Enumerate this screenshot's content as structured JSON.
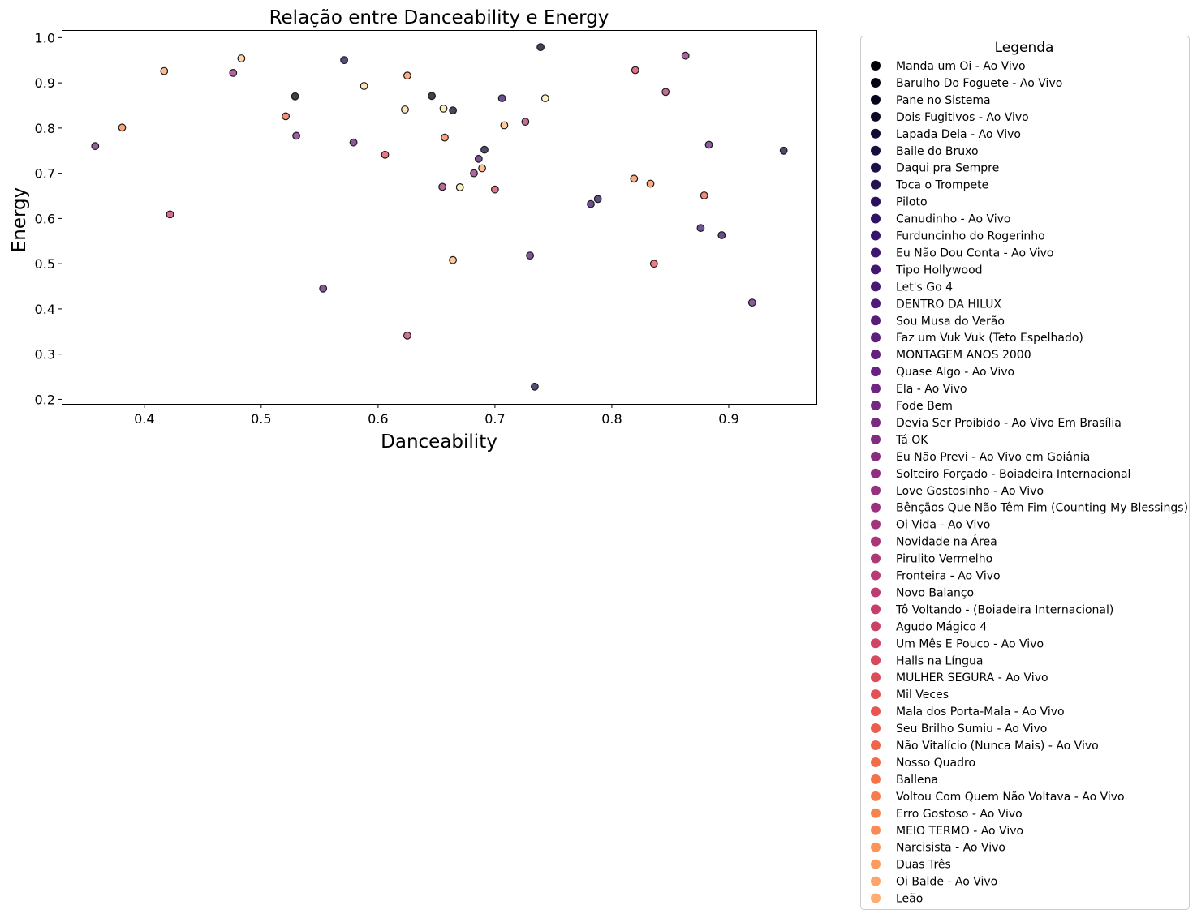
{
  "chart_data": {
    "type": "scatter",
    "title": "Relação entre Danceability e Energy",
    "xlabel": "Danceability",
    "ylabel": "Energy",
    "xlim": [
      0.33,
      0.975
    ],
    "ylim": [
      0.19,
      1.015
    ],
    "xticks": [
      0.4,
      0.5,
      0.6,
      0.7,
      0.8,
      0.9
    ],
    "xtick_labels": [
      "0.4",
      "0.5",
      "0.6",
      "0.7",
      "0.8",
      "0.9"
    ],
    "yticks": [
      0.2,
      0.3,
      0.4,
      0.5,
      0.6,
      0.7,
      0.8,
      0.9,
      1.0
    ],
    "ytick_labels": [
      "0.2",
      "0.3",
      "0.4",
      "0.5",
      "0.6",
      "0.7",
      "0.8",
      "0.9",
      "1.0"
    ],
    "grid": false,
    "legend_title": "Legenda",
    "legend_position": "outside-right",
    "series": [
      {
        "name": "Manda um Oi - Ao Vivo",
        "color": "#000004"
      },
      {
        "name": "Barulho Do Foguete - Ao Vivo",
        "color": "#030213"
      },
      {
        "name": "Pane no Sistema",
        "color": "#06051f"
      },
      {
        "name": "Dois Fugitivos - Ao Vivo",
        "color": "#0b0926"
      },
      {
        "name": "Lapada Dela - Ao Vivo",
        "color": "#110c33"
      },
      {
        "name": "Baile do Bruxo",
        "color": "#180f3d"
      },
      {
        "name": "Daqui pra Sempre",
        "color": "#1d1147"
      },
      {
        "name": "Toca o Trompete",
        "color": "#231151"
      },
      {
        "name": "Piloto",
        "color": "#2a115c"
      },
      {
        "name": "Canudinho - Ao Vivo",
        "color": "#311165"
      },
      {
        "name": "Furduncinho do Rogerinho",
        "color": "#37126b"
      },
      {
        "name": "Eu Não Dou Conta - Ao Vivo",
        "color": "#3d1470"
      },
      {
        "name": "Tipo Hollywood",
        "color": "#441674"
      },
      {
        "name": "Let's Go 4",
        "color": "#4a1877"
      },
      {
        "name": "DENTRO DA HILUX",
        "color": "#501a7a"
      },
      {
        "name": "Sou Musa do Verão",
        "color": "#571c7c"
      },
      {
        "name": "Faz um Vuk Vuk (Teto Espelhado)",
        "color": "#5d1e7e"
      },
      {
        "name": "MONTAGEM ANOS 2000",
        "color": "#63207f"
      },
      {
        "name": "Quase Algo - Ao Vivo",
        "color": "#692280"
      },
      {
        "name": "Ela - Ao Vivo",
        "color": "#702580"
      },
      {
        "name": "Fode Bem",
        "color": "#762781"
      },
      {
        "name": "Devia Ser Proibido - Ao Vivo Em Brasília",
        "color": "#7c2981"
      },
      {
        "name": "Tá OK",
        "color": "#822b81"
      },
      {
        "name": "Eu Não Previ - Ao Vivo em Goiânia",
        "color": "#892d80"
      },
      {
        "name": "Solteiro Forçado - Boiadeira Internacional",
        "color": "#902f80"
      },
      {
        "name": "Love Gostosinho - Ao Vivo",
        "color": "#96317f"
      },
      {
        "name": "Bênçãos Que Não Têm Fim (Counting My Blessings)",
        "color": "#9c327e"
      },
      {
        "name": "Oi Vida - Ao Vivo",
        "color": "#a2347c"
      },
      {
        "name": "Novidade na Área",
        "color": "#a9367a"
      },
      {
        "name": "Pirulito Vermelho",
        "color": "#b03877"
      },
      {
        "name": "Fronteira - Ao Vivo",
        "color": "#b73a74"
      },
      {
        "name": "Novo Balanço",
        "color": "#be3c70"
      },
      {
        "name": "Tô Voltando - (Boiadeira Internacional)",
        "color": "#c53f6c"
      },
      {
        "name": "Agudo Mágico 4",
        "color": "#cb4268"
      },
      {
        "name": "Um Mês E Pouco - Ao Vivo",
        "color": "#d24463"
      },
      {
        "name": "Halls na Língua",
        "color": "#d8485e"
      },
      {
        "name": "MULHER SEGURA - Ao Vivo",
        "color": "#de4c59"
      },
      {
        "name": "Mil Veces",
        "color": "#e35154"
      },
      {
        "name": "Mala dos Porta-Mala - Ao Vivo",
        "color": "#e8574f"
      },
      {
        "name": "Seu Brilho Sumiu - Ao Vivo",
        "color": "#ec5d4b"
      },
      {
        "name": "Não Vitalício (Nunca Mais) - Ao Vivo",
        "color": "#f06449"
      },
      {
        "name": "Nosso Quadro",
        "color": "#f36b48"
      },
      {
        "name": "Ballena",
        "color": "#f57349"
      },
      {
        "name": "Voltou Com Quem Não Voltava - Ao Vivo",
        "color": "#f87b4c"
      },
      {
        "name": "Erro Gostoso - Ao Vivo",
        "color": "#f9834f"
      },
      {
        "name": "MEIO TERMO - Ao Vivo",
        "color": "#fb8b54"
      },
      {
        "name": "Narcisista - Ao Vivo",
        "color": "#fc945a"
      },
      {
        "name": "Duas Três",
        "color": "#fd9c61"
      },
      {
        "name": "Oi Balde - Ao Vivo",
        "color": "#fea469"
      },
      {
        "name": "Leão",
        "color": "#feac70"
      }
    ],
    "points": [
      {
        "x": 0.358,
        "y": 0.76,
        "color": "#762781"
      },
      {
        "x": 0.381,
        "y": 0.801,
        "color": "#f9834f"
      },
      {
        "x": 0.417,
        "y": 0.926,
        "color": "#fca35f"
      },
      {
        "x": 0.422,
        "y": 0.609,
        "color": "#c53f6c"
      },
      {
        "x": 0.476,
        "y": 0.922,
        "color": "#96317f"
      },
      {
        "x": 0.483,
        "y": 0.954,
        "color": "#fec98d"
      },
      {
        "x": 0.521,
        "y": 0.826,
        "color": "#ef6a4a"
      },
      {
        "x": 0.529,
        "y": 0.87,
        "color": "#000004"
      },
      {
        "x": 0.53,
        "y": 0.783,
        "color": "#7c2981"
      },
      {
        "x": 0.553,
        "y": 0.445,
        "color": "#63207f"
      },
      {
        "x": 0.571,
        "y": 0.95,
        "color": "#231151"
      },
      {
        "x": 0.579,
        "y": 0.768,
        "color": "#63207f"
      },
      {
        "x": 0.588,
        "y": 0.893,
        "color": "#fdd99b"
      },
      {
        "x": 0.606,
        "y": 0.741,
        "color": "#de4c59"
      },
      {
        "x": 0.623,
        "y": 0.841,
        "color": "#fee0a3"
      },
      {
        "x": 0.625,
        "y": 0.916,
        "color": "#fc945a"
      },
      {
        "x": 0.625,
        "y": 0.341,
        "color": "#c53f6c"
      },
      {
        "x": 0.646,
        "y": 0.871,
        "color": "#030213"
      },
      {
        "x": 0.655,
        "y": 0.67,
        "color": "#a2347c"
      },
      {
        "x": 0.656,
        "y": 0.843,
        "color": "#fee6ab"
      },
      {
        "x": 0.657,
        "y": 0.779,
        "color": "#f9834f"
      },
      {
        "x": 0.664,
        "y": 0.839,
        "color": "#0b0926"
      },
      {
        "x": 0.664,
        "y": 0.508,
        "color": "#fdb67a"
      },
      {
        "x": 0.67,
        "y": 0.669,
        "color": "#feedb0"
      },
      {
        "x": 0.682,
        "y": 0.7,
        "color": "#96317f"
      },
      {
        "x": 0.686,
        "y": 0.732,
        "color": "#501a7a"
      },
      {
        "x": 0.689,
        "y": 0.711,
        "color": "#fdae6a"
      },
      {
        "x": 0.691,
        "y": 0.752,
        "color": "#180f3d"
      },
      {
        "x": 0.7,
        "y": 0.664,
        "color": "#d8485e"
      },
      {
        "x": 0.706,
        "y": 0.866,
        "color": "#3d1470"
      },
      {
        "x": 0.708,
        "y": 0.806,
        "color": "#fdbb80"
      },
      {
        "x": 0.726,
        "y": 0.814,
        "color": "#b73a74"
      },
      {
        "x": 0.73,
        "y": 0.518,
        "color": "#571c7c"
      },
      {
        "x": 0.734,
        "y": 0.228,
        "color": "#1d1147"
      },
      {
        "x": 0.739,
        "y": 0.979,
        "color": "#06051f"
      },
      {
        "x": 0.743,
        "y": 0.866,
        "color": "#fef0b5"
      },
      {
        "x": 0.782,
        "y": 0.632,
        "color": "#3d1470"
      },
      {
        "x": 0.788,
        "y": 0.643,
        "color": "#2a115c"
      },
      {
        "x": 0.819,
        "y": 0.688,
        "color": "#fc8e56"
      },
      {
        "x": 0.82,
        "y": 0.928,
        "color": "#d24463"
      },
      {
        "x": 0.833,
        "y": 0.677,
        "color": "#fb8b54"
      },
      {
        "x": 0.836,
        "y": 0.5,
        "color": "#e35154"
      },
      {
        "x": 0.846,
        "y": 0.88,
        "color": "#b73a74"
      },
      {
        "x": 0.863,
        "y": 0.96,
        "color": "#8c2e80"
      },
      {
        "x": 0.876,
        "y": 0.579,
        "color": "#441674"
      },
      {
        "x": 0.879,
        "y": 0.651,
        "color": "#f06449"
      },
      {
        "x": 0.883,
        "y": 0.763,
        "color": "#692280"
      },
      {
        "x": 0.894,
        "y": 0.563,
        "color": "#37126b"
      },
      {
        "x": 0.92,
        "y": 0.414,
        "color": "#692280"
      },
      {
        "x": 0.947,
        "y": 0.75,
        "color": "#110c33"
      }
    ]
  }
}
